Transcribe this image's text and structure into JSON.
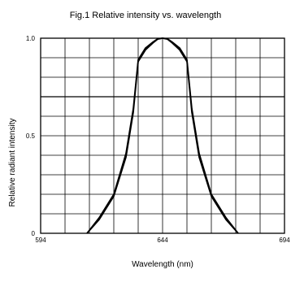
{
  "chart_data": {
    "type": "line",
    "title": "Fig.1 Relative intensity vs. wavelength",
    "xlabel": "Wavelength (nm)",
    "ylabel": "Relative radiant intensity",
    "xlim": [
      594,
      694
    ],
    "ylim": [
      0,
      1.0
    ],
    "x_tick_labels": [
      "594",
      "644",
      "694"
    ],
    "y_tick_labels": [
      "0",
      "0.5",
      "1.0"
    ],
    "grid": true,
    "series": [
      {
        "x": [
          613,
          618,
          624,
          629,
          632,
          634,
          637,
          640,
          642,
          644,
          646,
          648,
          651,
          654,
          656,
          659,
          664,
          670,
          675
        ],
        "values": [
          0.0,
          0.07,
          0.19,
          0.39,
          0.62,
          0.88,
          0.94,
          0.975,
          0.995,
          1.0,
          0.995,
          0.975,
          0.94,
          0.88,
          0.62,
          0.39,
          0.19,
          0.07,
          0.0
        ]
      }
    ],
    "series_outer": {
      "x": [
        613,
        618,
        624,
        629,
        632,
        634,
        637,
        640,
        642,
        644,
        646,
        648,
        651,
        654,
        656,
        659,
        664,
        670,
        675
      ],
      "values": [
        0.0,
        0.08,
        0.2,
        0.41,
        0.64,
        0.89,
        0.95,
        0.98,
        0.997,
        1.0,
        0.997,
        0.98,
        0.95,
        0.89,
        0.64,
        0.41,
        0.2,
        0.08,
        0.0
      ]
    }
  }
}
